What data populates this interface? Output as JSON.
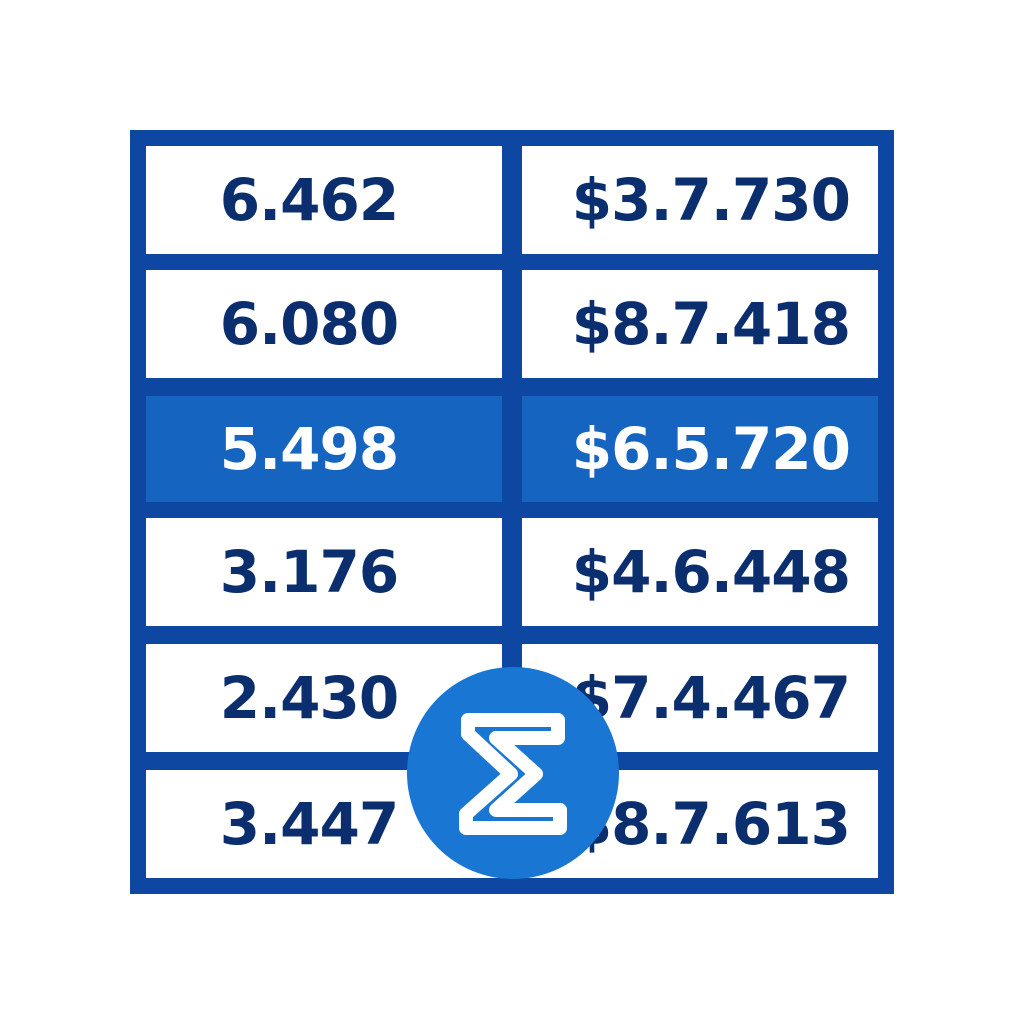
{
  "table": {
    "rows": [
      {
        "left": "6.462",
        "right": "$3.7.730",
        "selected": false
      },
      {
        "left": "6.080",
        "right": "$8.7.418",
        "selected": false
      },
      {
        "left": "5.498",
        "right": "$6.5.720",
        "selected": true
      },
      {
        "left": "3.176",
        "right": "$4.6.448",
        "selected": false
      },
      {
        "left": "2.430",
        "right": "$7.4.467",
        "selected": false
      },
      {
        "left": "3.447",
        "right": "$8.7.613",
        "selected": false
      }
    ]
  },
  "badge": {
    "icon": "sigma-icon"
  },
  "colors": {
    "border": "#0d47a1",
    "text": "#0b2e6e",
    "selected_fill": "#1565c0",
    "selected_text": "#ffffff",
    "badge_fill": "#1976d2"
  }
}
